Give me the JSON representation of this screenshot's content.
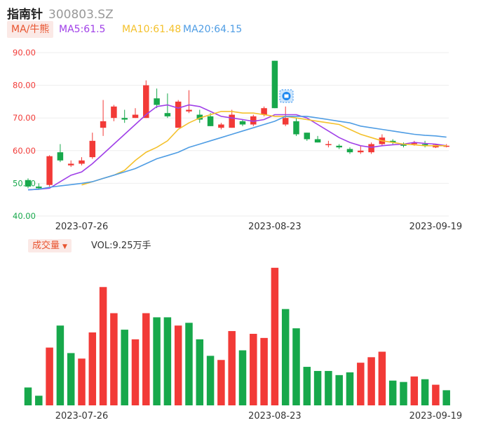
{
  "header": {
    "name": "指南针",
    "code": "300803.SZ"
  },
  "ma_legend": {
    "tag": "MA/牛熊",
    "items": [
      {
        "label": "MA5:61.5",
        "color": "#a040e8"
      },
      {
        "label": "MA10:61.48",
        "color": "#f4c12c"
      },
      {
        "label": "MA20:64.15",
        "color": "#4f9de4"
      }
    ]
  },
  "volume_legend": {
    "tag": "成交量",
    "label": "VOL:9.25万手"
  },
  "colors": {
    "up": "#f23a37",
    "down": "#17a84b",
    "grid": "#eeeeee"
  },
  "chart_data": [
    {
      "type": "candlestick",
      "title": "",
      "ylim": [
        40,
        90
      ],
      "yticks": [
        "90.00",
        "80.00",
        "70.00",
        "60.00",
        "50.00",
        "40.00"
      ],
      "ytick_colors": [
        "#f23a37",
        "#f23a37",
        "#f23a37",
        "#f23a37",
        "#17a84b",
        "#17a84b"
      ],
      "x_tick_labels": [
        {
          "index": 5,
          "label": "2023-07-26"
        },
        {
          "index": 23,
          "label": "2023-08-23"
        },
        {
          "index": 38,
          "label": "2023-09-19"
        }
      ],
      "grid": true,
      "candles": [
        {
          "o": 51.0,
          "h": 51.5,
          "l": 48.5,
          "c": 49.0
        },
        {
          "o": 49.0,
          "h": 50.0,
          "l": 48.0,
          "c": 48.5
        },
        {
          "o": 49.5,
          "h": 58.6,
          "l": 49.0,
          "c": 58.3
        },
        {
          "o": 59.5,
          "h": 62.0,
          "l": 56.5,
          "c": 57.0
        },
        {
          "o": 55.5,
          "h": 57.0,
          "l": 55.0,
          "c": 56.0
        },
        {
          "o": 56.0,
          "h": 58.0,
          "l": 55.5,
          "c": 57.0
        },
        {
          "o": 58.0,
          "h": 65.5,
          "l": 57.5,
          "c": 63.0
        },
        {
          "o": 67.0,
          "h": 75.5,
          "l": 64.5,
          "c": 69.0
        },
        {
          "o": 70.0,
          "h": 74.0,
          "l": 69.0,
          "c": 73.5
        },
        {
          "o": 70.0,
          "h": 72.5,
          "l": 68.5,
          "c": 69.5
        },
        {
          "o": 70.0,
          "h": 73.0,
          "l": 70.0,
          "c": 71.0
        },
        {
          "o": 70.0,
          "h": 81.5,
          "l": 70.0,
          "c": 80.0
        },
        {
          "o": 76.0,
          "h": 79.0,
          "l": 73.0,
          "c": 74.0
        },
        {
          "o": 71.5,
          "h": 77.5,
          "l": 70.0,
          "c": 70.5
        },
        {
          "o": 67.0,
          "h": 75.5,
          "l": 67.0,
          "c": 75.0
        },
        {
          "o": 72.0,
          "h": 78.5,
          "l": 71.5,
          "c": 72.5
        },
        {
          "o": 71.0,
          "h": 72.5,
          "l": 68.5,
          "c": 69.5
        },
        {
          "o": 70.5,
          "h": 71.5,
          "l": 67.5,
          "c": 67.5
        },
        {
          "o": 67.0,
          "h": 68.5,
          "l": 66.5,
          "c": 68.0
        },
        {
          "o": 67.0,
          "h": 72.5,
          "l": 67.0,
          "c": 71.0
        },
        {
          "o": 69.0,
          "h": 69.5,
          "l": 67.5,
          "c": 68.0
        },
        {
          "o": 68.0,
          "h": 71.0,
          "l": 67.5,
          "c": 70.5
        },
        {
          "o": 71.0,
          "h": 73.5,
          "l": 70.5,
          "c": 73.0
        },
        {
          "o": 87.5,
          "h": 87.5,
          "l": 73.0,
          "c": 73.0
        },
        {
          "o": 68.0,
          "h": 73.5,
          "l": 67.5,
          "c": 70.0
        },
        {
          "o": 69.0,
          "h": 70.0,
          "l": 64.5,
          "c": 65.0
        },
        {
          "o": 65.5,
          "h": 65.5,
          "l": 63.0,
          "c": 63.5
        },
        {
          "o": 63.5,
          "h": 64.5,
          "l": 62.5,
          "c": 62.5
        },
        {
          "o": 62.0,
          "h": 63.0,
          "l": 61.0,
          "c": 62.0
        },
        {
          "o": 61.5,
          "h": 62.0,
          "l": 60.5,
          "c": 61.0
        },
        {
          "o": 60.5,
          "h": 61.0,
          "l": 59.0,
          "c": 59.5
        },
        {
          "o": 59.5,
          "h": 61.5,
          "l": 59.0,
          "c": 60.0
        },
        {
          "o": 59.5,
          "h": 62.5,
          "l": 59.0,
          "c": 62.0
        },
        {
          "o": 62.0,
          "h": 65.0,
          "l": 61.5,
          "c": 64.0
        },
        {
          "o": 63.0,
          "h": 63.5,
          "l": 62.0,
          "c": 62.5
        },
        {
          "o": 62.0,
          "h": 62.5,
          "l": 61.0,
          "c": 61.5
        },
        {
          "o": 62.0,
          "h": 63.0,
          "l": 61.5,
          "c": 62.5
        },
        {
          "o": 62.0,
          "h": 63.0,
          "l": 61.0,
          "c": 61.5
        },
        {
          "o": 61.0,
          "h": 62.0,
          "l": 60.8,
          "c": 61.8
        },
        {
          "o": 61.5,
          "h": 62.0,
          "l": 61.0,
          "c": 61.5
        }
      ],
      "series": [
        {
          "name": "MA5",
          "color": "#a040e8",
          "values": [
            48,
            48.2,
            48.5,
            50.5,
            52.5,
            53.5,
            56,
            59,
            62,
            65,
            68,
            71,
            73.5,
            74,
            73,
            74,
            73.5,
            72,
            70.5,
            70,
            69.5,
            69,
            69.5,
            71,
            71,
            71,
            70,
            68,
            66,
            64,
            62.5,
            61.5,
            61,
            61.5,
            61.8,
            62,
            62.5,
            62.2,
            62,
            61.5
          ]
        },
        {
          "name": "MA10",
          "color": "#f4c12c",
          "values": [
            null,
            null,
            null,
            null,
            null,
            49.5,
            50.5,
            51.5,
            52.5,
            54,
            57,
            59.5,
            61,
            63,
            66.5,
            68.5,
            70,
            71,
            72,
            72,
            71.5,
            71.5,
            71,
            70.5,
            70.5,
            70,
            69.5,
            69,
            68.5,
            68,
            66.5,
            65,
            64,
            63,
            62.5,
            62,
            61.8,
            61.5,
            61.5,
            61.5
          ]
        },
        {
          "name": "MA20",
          "color": "#4f9de4",
          "values": [
            48,
            48.2,
            48.8,
            49.2,
            49.6,
            50,
            50.5,
            51.5,
            52.5,
            53.5,
            54.5,
            56,
            57.5,
            58.5,
            59.5,
            61,
            62,
            63,
            64,
            65,
            66,
            67,
            68,
            69,
            70.5,
            70.5,
            70.5,
            70,
            69.5,
            69,
            68.5,
            67.5,
            67,
            66.5,
            66,
            65.5,
            65,
            64.7,
            64.5,
            64.15
          ]
        }
      ]
    },
    {
      "type": "bar",
      "title": "",
      "ylabel": "VOL",
      "ylim": [
        0,
        105
      ],
      "x_tick_labels": [
        {
          "index": 5,
          "label": "2023-07-26"
        },
        {
          "index": 23,
          "label": "2023-08-23"
        },
        {
          "index": 38,
          "label": "2023-09-19"
        }
      ],
      "bars": [
        {
          "value": 13,
          "dir": "down"
        },
        {
          "value": 7,
          "dir": "down"
        },
        {
          "value": 42,
          "dir": "up"
        },
        {
          "value": 58,
          "dir": "down"
        },
        {
          "value": 38,
          "dir": "down"
        },
        {
          "value": 34,
          "dir": "up"
        },
        {
          "value": 53,
          "dir": "up"
        },
        {
          "value": 86,
          "dir": "up"
        },
        {
          "value": 67,
          "dir": "up"
        },
        {
          "value": 55,
          "dir": "down"
        },
        {
          "value": 48,
          "dir": "up"
        },
        {
          "value": 67,
          "dir": "up"
        },
        {
          "value": 64,
          "dir": "down"
        },
        {
          "value": 64,
          "dir": "down"
        },
        {
          "value": 58,
          "dir": "up"
        },
        {
          "value": 60,
          "dir": "down"
        },
        {
          "value": 48,
          "dir": "down"
        },
        {
          "value": 36,
          "dir": "down"
        },
        {
          "value": 33,
          "dir": "up"
        },
        {
          "value": 54,
          "dir": "up"
        },
        {
          "value": 40,
          "dir": "down"
        },
        {
          "value": 52,
          "dir": "up"
        },
        {
          "value": 49,
          "dir": "up"
        },
        {
          "value": 100,
          "dir": "up"
        },
        {
          "value": 70,
          "dir": "down"
        },
        {
          "value": 56,
          "dir": "down"
        },
        {
          "value": 28,
          "dir": "down"
        },
        {
          "value": 25,
          "dir": "down"
        },
        {
          "value": 25,
          "dir": "down"
        },
        {
          "value": 22,
          "dir": "down"
        },
        {
          "value": 24,
          "dir": "down"
        },
        {
          "value": 31,
          "dir": "up"
        },
        {
          "value": 35,
          "dir": "up"
        },
        {
          "value": 39,
          "dir": "up"
        },
        {
          "value": 18,
          "dir": "down"
        },
        {
          "value": 17,
          "dir": "down"
        },
        {
          "value": 21,
          "dir": "up"
        },
        {
          "value": 19,
          "dir": "down"
        },
        {
          "value": 15,
          "dir": "up"
        },
        {
          "value": 11,
          "dir": "down"
        }
      ]
    }
  ]
}
